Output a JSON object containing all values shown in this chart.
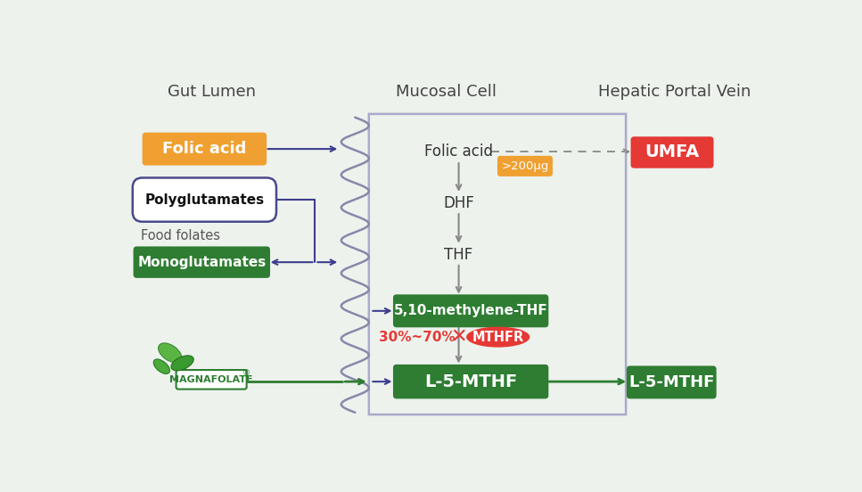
{
  "bg_color": "#edf2ed",
  "title_gut": "Gut Lumen",
  "title_mucosal": "Mucosal Cell",
  "title_hepatic": "Hepatic Portal Vein",
  "folic_acid_label": "Folic acid",
  "folic_acid_color": "#f0a030",
  "poly_label": "Polyglutamates",
  "poly_border": "#4a4a8a",
  "food_folates": "Food folates",
  "mono_label": "Monoglutamates",
  "green_dark": "#2e7d32",
  "dhf": "DHF",
  "thf": "THF",
  "methylene": "5,10-methylene-THF",
  "percent": "30%~70%",
  "mthfr": "MTHFR",
  "red": "#e53935",
  "l5mthf": "L-5-MTHF",
  "umfa": "UMFA",
  "over200": ">200μg",
  "over200_color": "#f0a030",
  "magnafolate": "MAGNAFOLATE",
  "blue_arrow": "#3d3d8f",
  "gray_arrow": "#888888",
  "green_arrow": "#2e7d32"
}
